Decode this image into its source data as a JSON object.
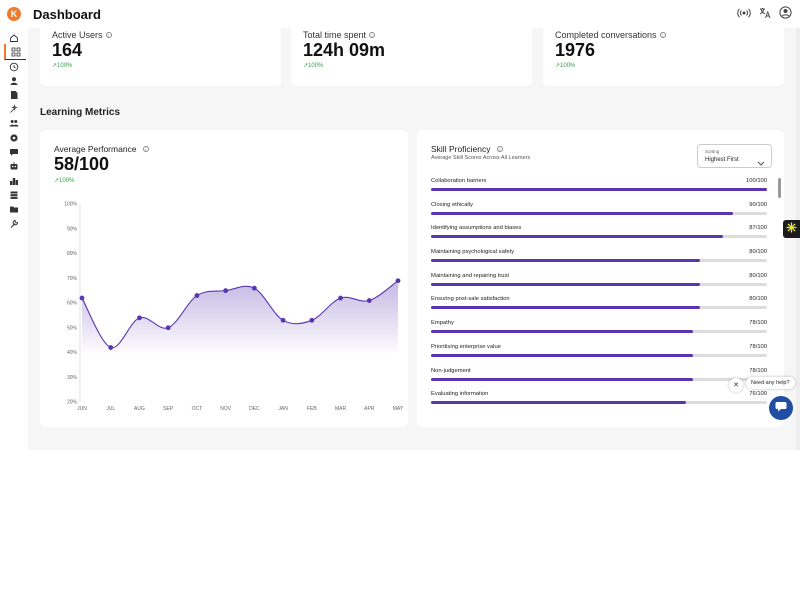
{
  "app": {
    "logo_text": "K",
    "title": "Dashboard",
    "accent": "#f07a2c",
    "primary": "#5a35b0"
  },
  "topbar": {
    "icons": [
      "broadcast-icon",
      "translate-icon",
      "user-account-icon"
    ]
  },
  "sidebar": {
    "items": [
      {
        "icon": "home-icon"
      },
      {
        "icon": "dashboard-grid-icon",
        "active": true
      },
      {
        "icon": "history-clock-icon"
      },
      {
        "icon": "person-icon"
      },
      {
        "icon": "document-icon"
      },
      {
        "icon": "ai-tools-icon"
      },
      {
        "icon": "team-icon"
      },
      {
        "icon": "settings-gear-icon"
      },
      {
        "icon": "chat-bubble-icon"
      },
      {
        "icon": "robot-icon"
      },
      {
        "icon": "leaderboard-icon"
      },
      {
        "icon": "library-icon"
      },
      {
        "icon": "folder-icon"
      },
      {
        "icon": "wrench-icon"
      }
    ]
  },
  "stats": [
    {
      "label": "Active Users",
      "value": "164",
      "change": "↗100%"
    },
    {
      "label": "Total time spent",
      "value": "124h 09m",
      "change": "↗100%"
    },
    {
      "label": "Completed conversations",
      "value": "1976",
      "change": "↗100%"
    }
  ],
  "section": {
    "title": "Learning Metrics"
  },
  "performance": {
    "label": "Average Performance",
    "value": "58/100",
    "change": "↗100%"
  },
  "chart_data": {
    "type": "area",
    "categories": [
      "JUN",
      "JUL",
      "AUG",
      "SEP",
      "OCT",
      "NOV",
      "DEC",
      "JAN",
      "FEB",
      "MAR",
      "APR",
      "MAY"
    ],
    "series": [
      {
        "values": [
          62,
          42,
          54,
          50,
          63,
          65,
          66,
          53,
          53,
          62,
          61,
          69
        ]
      }
    ],
    "yticks": [
      "100%",
      "90%",
      "80%",
      "70%",
      "60%",
      "50%",
      "40%",
      "30%",
      "20%"
    ],
    "ylim": [
      20,
      100
    ],
    "title": "",
    "xlabel": "",
    "ylabel": "",
    "color": "#5a35b0"
  },
  "skills": {
    "title": "Skill Proficiency",
    "subtitle": "Average Skill Scores Across All Learners",
    "sort_label": "Sorting",
    "sort_value": "Highest First",
    "items": [
      {
        "name": "Collaboration barriers",
        "score": "100/100",
        "value": 100
      },
      {
        "name": "Closing ethically",
        "score": "90/100",
        "value": 90
      },
      {
        "name": "Identifying assumptions and biases",
        "score": "87/100",
        "value": 87
      },
      {
        "name": "Maintaining psychological safety",
        "score": "80/100",
        "value": 80
      },
      {
        "name": "Maintaining and repairing trust",
        "score": "80/100",
        "value": 80
      },
      {
        "name": "Ensuring post-sale satisfaction",
        "score": "80/100",
        "value": 80
      },
      {
        "name": "Empathy",
        "score": "78/100",
        "value": 78
      },
      {
        "name": "Prioritising enterprise value",
        "score": "78/100",
        "value": 78
      },
      {
        "name": "Non-judgement",
        "score": "78/100",
        "value": 78
      },
      {
        "name": "Evaluating information",
        "score": "76/100",
        "value": 76
      }
    ]
  },
  "help": {
    "close": "✕",
    "bubble": "Need any help?"
  }
}
